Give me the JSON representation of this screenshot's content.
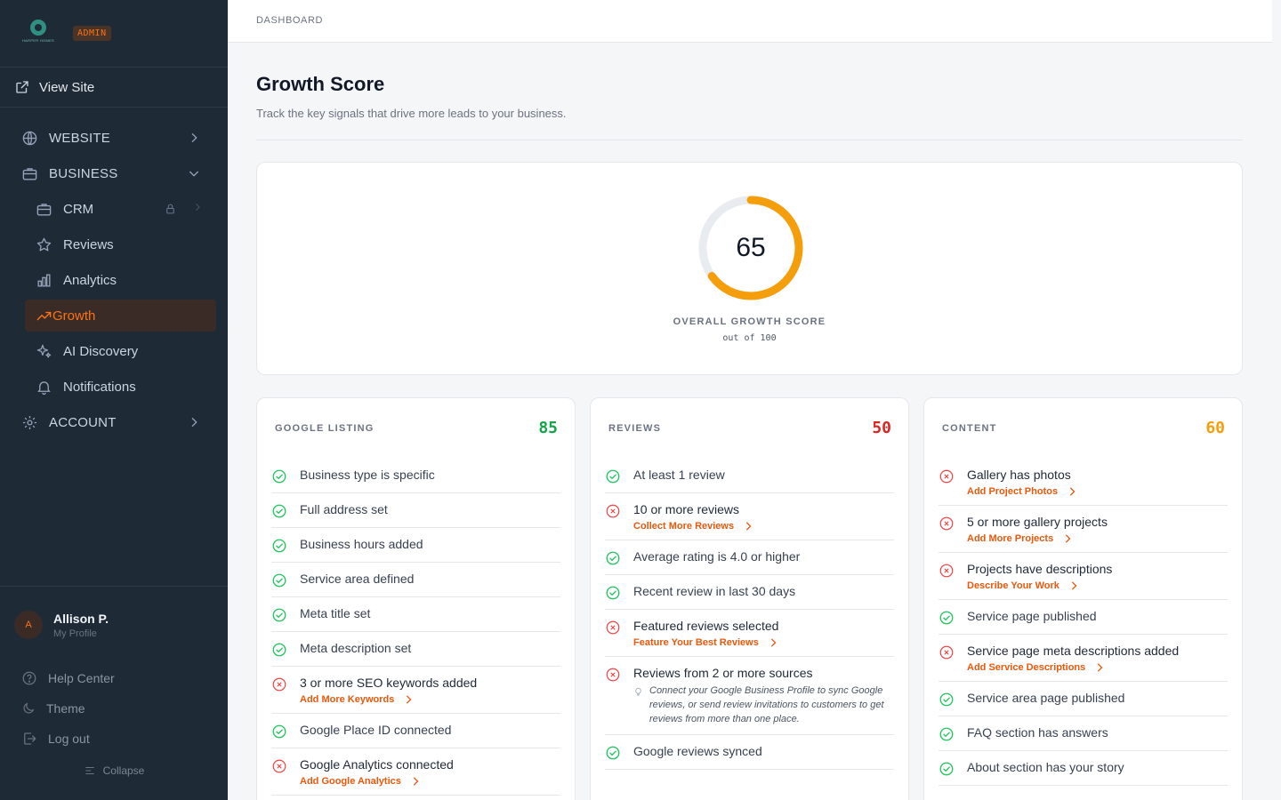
{
  "brand": {
    "logo_text": "HARPER HOMES",
    "badge": "ADMIN"
  },
  "sidebar": {
    "view_site": "View Site",
    "nav": [
      {
        "label": "WEBSITE"
      },
      {
        "label": "BUSINESS"
      },
      {
        "label": "CRM"
      },
      {
        "label": "Reviews"
      },
      {
        "label": "Analytics"
      },
      {
        "label": "Growth"
      },
      {
        "label": "AI Discovery"
      },
      {
        "label": "Notifications"
      },
      {
        "label": "ACCOUNT"
      }
    ],
    "profile": {
      "initial": "A",
      "name": "Allison P.",
      "sub": "My Profile"
    },
    "utils": {
      "help": "Help Center",
      "theme": "Theme",
      "logout": "Log out",
      "collapse": "Collapse"
    }
  },
  "header": {
    "breadcrumb": "DASHBOARD"
  },
  "page": {
    "title": "Growth Score",
    "subtitle": "Track the key signals that drive more leads to your business."
  },
  "overall": {
    "score": "65",
    "score_fraction": 0.65,
    "label": "OVERALL GROWTH SCORE",
    "out_of": "out of 100"
  },
  "colors": {
    "accent": "#f59e0b",
    "pass": "#22c55e",
    "fail": "#ef4444",
    "action": "#ea580c",
    "active_nav": "#f97316"
  },
  "cards": {
    "google": {
      "title": "GOOGLE LISTING",
      "score": "85",
      "score_color": "#16a34a",
      "items": [
        {
          "text": "Business type is specific"
        },
        {
          "text": "Full address set"
        },
        {
          "text": "Business hours added"
        },
        {
          "text": "Service area defined"
        },
        {
          "text": "Meta title set"
        },
        {
          "text": "Meta description set"
        },
        {
          "text": "3 or more SEO keywords added",
          "action": "Add More Keywords"
        },
        {
          "text": "Google Place ID connected"
        },
        {
          "text": "Google Analytics connected",
          "action": "Add Google Analytics"
        }
      ]
    },
    "reviews": {
      "title": "REVIEWS",
      "score": "50",
      "score_color": "#dc2626",
      "items": [
        {
          "text": "At least 1 review"
        },
        {
          "text": "10 or more reviews",
          "action": "Collect More Reviews"
        },
        {
          "text": "Average rating is 4.0 or higher"
        },
        {
          "text": "Recent review in last 30 days"
        },
        {
          "text": "Featured reviews selected",
          "action": "Feature Your Best Reviews"
        },
        {
          "text": "Reviews from 2 or more sources",
          "hint": "Connect your Google Business Profile to sync Google reviews, or send review invitations to customers to get reviews from more than one place."
        },
        {
          "text": "Google reviews synced"
        }
      ]
    },
    "content": {
      "title": "CONTENT",
      "score": "60",
      "score_color": "#f59e0b",
      "items": [
        {
          "text": "Gallery has photos",
          "action": "Add Project Photos"
        },
        {
          "text": "5 or more gallery projects",
          "action": "Add More Projects"
        },
        {
          "text": "Projects have descriptions",
          "action": "Describe Your Work"
        },
        {
          "text": "Service page published"
        },
        {
          "text": "Service page meta descriptions added",
          "action": "Add Service Descriptions"
        },
        {
          "text": "Service area page published"
        },
        {
          "text": "FAQ section has answers"
        },
        {
          "text": "About section has your story"
        }
      ]
    }
  }
}
